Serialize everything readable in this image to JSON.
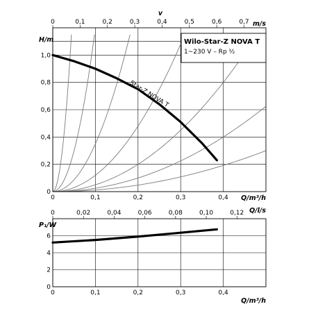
{
  "chart_data": [
    {
      "type": "line",
      "title": "Wilo-Star-Z NOVA T",
      "subtitle": "1~230 V – Rp ½",
      "ylabel": "H/m",
      "xlabel": "Q/m³/h",
      "top_axis_label": "v",
      "top_axis_unit": "m/s",
      "xlim": [
        0,
        0.5
      ],
      "ylim": [
        0,
        1.2
      ],
      "x_ticks": [
        "0",
        "0,1",
        "0,2",
        "0,3",
        "0,4"
      ],
      "y_ticks": [
        "0",
        "0,2",
        "0,4",
        "0,6",
        "0,8",
        "1,0"
      ],
      "top_ticks": [
        "0",
        "0,1",
        "0,2",
        "0,3",
        "0,4",
        "0,5",
        "0,6",
        "0,7"
      ],
      "top_tick_values": [
        0,
        0.1,
        0.2,
        0.3,
        0.4,
        0.5,
        0.6,
        0.7
      ],
      "grid": true,
      "series": [
        {
          "name": "Star-Z NOVA T",
          "x": [
            0,
            0.05,
            0.1,
            0.15,
            0.2,
            0.25,
            0.3,
            0.35,
            0.385
          ],
          "y": [
            1.0,
            0.955,
            0.9,
            0.83,
            0.75,
            0.64,
            0.51,
            0.355,
            0.23
          ]
        }
      ],
      "system_curves_k": [
        600,
        120,
        35,
        12,
        5,
        2.5,
        1.2
      ]
    },
    {
      "type": "line",
      "ylabel": "P₁/W",
      "xlabel": "Q/m³/h",
      "secondary_x_label": "Q/l/s",
      "xlim": [
        0,
        0.5
      ],
      "ylim": [
        0,
        8
      ],
      "x_ticks": [
        "0",
        "0,1",
        "0,2",
        "0,3",
        "0,4"
      ],
      "y_ticks": [
        "0",
        "2",
        "4",
        "6"
      ],
      "secondary_ticks": [
        "0",
        "0,02",
        "0,04",
        "0,06",
        "0,08",
        "0,10",
        "0,12"
      ],
      "secondary_tick_values": [
        0,
        0.02,
        0.04,
        0.06,
        0.08,
        0.1,
        0.12
      ],
      "grid": true,
      "series": [
        {
          "x": [
            0,
            0.1,
            0.2,
            0.3,
            0.385
          ],
          "y": [
            5.2,
            5.5,
            5.9,
            6.35,
            6.75
          ]
        }
      ]
    }
  ]
}
